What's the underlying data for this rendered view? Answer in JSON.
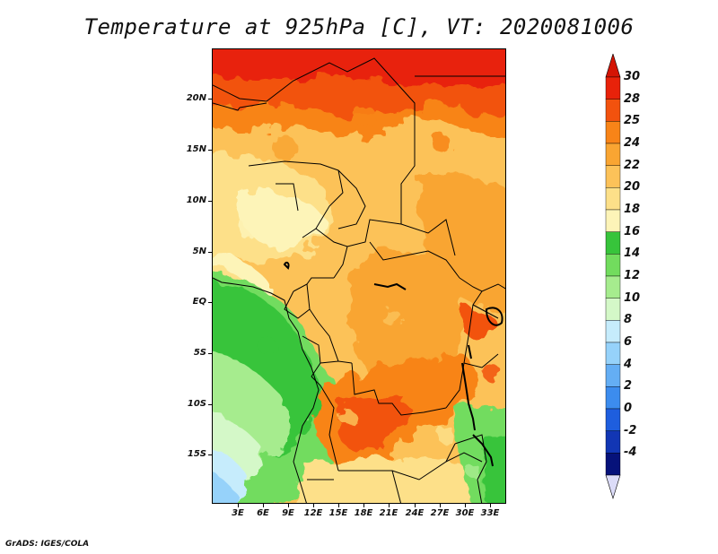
{
  "title": "Temperature at 925hPa [C], VT: 2020081006",
  "credit": "GrADS: IGES/COLA",
  "lat_labels": [
    "20N",
    "15N",
    "10N",
    "5N",
    "EQ",
    "5S",
    "10S",
    "15S"
  ],
  "lon_labels": [
    "3E",
    "6E",
    "9E",
    "12E",
    "15E",
    "18E",
    "21E",
    "24E",
    "27E",
    "30E",
    "33E"
  ],
  "colorbar": {
    "labels": [
      "30",
      "28",
      "25",
      "24",
      "22",
      "20",
      "18",
      "16",
      "14",
      "12",
      "10",
      "8",
      "6",
      "4",
      "2",
      "0",
      "-2",
      "-4"
    ],
    "colors": [
      "#e8220a",
      "#f2520e",
      "#f88418",
      "#f9a532",
      "#fcc259",
      "#fde089",
      "#fdf4b8",
      "#37c43b",
      "#72dc5e",
      "#a6ec8e",
      "#d4f8c8",
      "#c6ecfc",
      "#96d2fa",
      "#64aef4",
      "#3c8cee",
      "#1e5ede",
      "#1236b4",
      "#06127a",
      "#101060"
    ],
    "top_arrow_color": "#d41404",
    "bottom_arrow_color": "#dcdcf8"
  }
}
